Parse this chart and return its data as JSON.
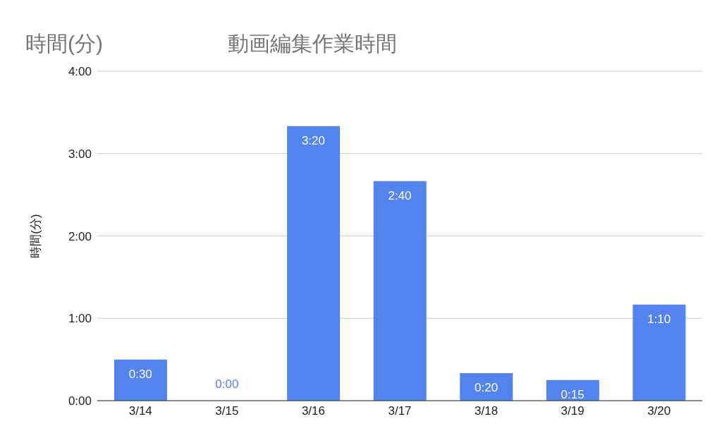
{
  "chart_data": {
    "type": "bar",
    "title": "動画編集作業時間",
    "ylabel": "時間(分)",
    "annotations": [
      "時間(分)"
    ],
    "categories": [
      "3/14",
      "3/15",
      "3/16",
      "3/17",
      "3/18",
      "3/19",
      "3/20"
    ],
    "values": [
      0.5,
      0,
      3.3333,
      2.6667,
      0.3333,
      0.25,
      1.1667
    ],
    "value_labels": [
      "0:30",
      "0:00",
      "3:20",
      "2:40",
      "0:20",
      "0:15",
      "1:10"
    ],
    "color": "#5383ec",
    "ylim": [
      0,
      4
    ],
    "yticks": [
      {
        "value": 0,
        "label": "0:00"
      },
      {
        "value": 1,
        "label": "1:00"
      },
      {
        "value": 2,
        "label": "2:00"
      },
      {
        "value": 3,
        "label": "3:00"
      },
      {
        "value": 4,
        "label": "4:00"
      }
    ],
    "grid": "y"
  }
}
